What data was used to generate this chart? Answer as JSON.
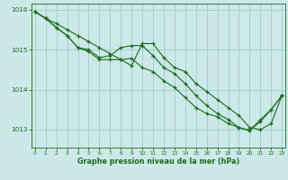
{
  "bg_color": "#cce8e8",
  "line_color": "#1a6b1a",
  "grid_color": "#a0cccc",
  "xlabel": "Graphe pression niveau de la mer (hPa)",
  "xlabel_color": "#1a6b1a",
  "tick_color": "#1a6b1a",
  "ylim": [
    1012.55,
    1016.15
  ],
  "yticks": [
    1013,
    1014,
    1015,
    1016
  ],
  "xlim": [
    -0.3,
    23.3
  ],
  "xticks": [
    0,
    1,
    2,
    3,
    4,
    5,
    6,
    7,
    8,
    9,
    10,
    11,
    12,
    13,
    14,
    15,
    16,
    17,
    18,
    19,
    20,
    21,
    22,
    23
  ],
  "line1": [
    1015.95,
    1015.78,
    1015.65,
    1015.5,
    1015.35,
    1015.2,
    1015.05,
    1014.9,
    1014.75,
    1014.6,
    1015.15,
    1015.15,
    1014.8,
    1014.55,
    1014.45,
    1014.15,
    1013.95,
    1013.75,
    1013.55,
    1013.35,
    1013.05,
    1013.0,
    1013.15,
    1013.85
  ],
  "line2": [
    1015.95,
    1015.78,
    1015.55,
    1015.35,
    1015.05,
    1015.0,
    1014.8,
    1014.85,
    1015.05,
    1015.1,
    1015.1,
    1014.85,
    1014.55,
    1014.4,
    1014.15,
    1013.85,
    1013.6,
    1013.4,
    1013.25,
    1013.05,
    1012.98,
    1013.2,
    1013.5,
    1013.85
  ],
  "line3": [
    1015.95,
    1015.78,
    1015.55,
    1015.35,
    1015.05,
    1014.95,
    1014.75,
    1014.75,
    1014.75,
    1014.78,
    1014.55,
    1014.45,
    1014.22,
    1014.05,
    1013.8,
    1013.55,
    1013.4,
    1013.32,
    1013.15,
    1013.05,
    1012.98,
    1013.25,
    1013.5,
    1013.85
  ]
}
